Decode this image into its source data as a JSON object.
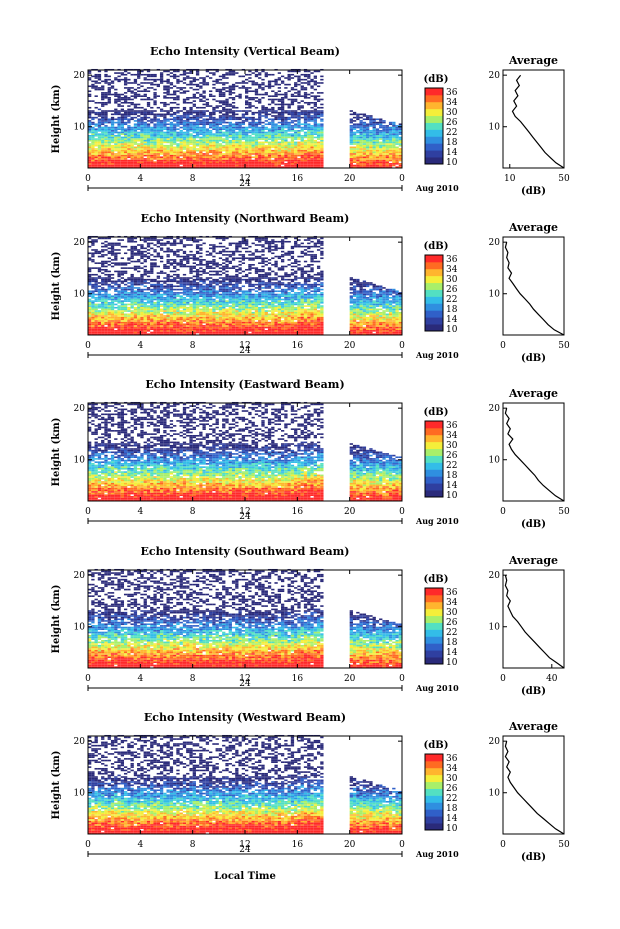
{
  "figure": {
    "xlabel": "Local Time",
    "colorscale": [
      "#2a2a7a",
      "#2f3fa0",
      "#3060c8",
      "#2f8fe0",
      "#33bde8",
      "#53e0c2",
      "#a8ef6a",
      "#f4ee3a",
      "#ffb52e",
      "#ff6b22",
      "#ff2a2a"
    ]
  },
  "chart_data": [
    {
      "type": "heatmap",
      "title": "Echo Intensity (Vertical Beam)",
      "ylabel": "Height (km)",
      "x_ticks": [
        "0",
        "4",
        "8",
        "12",
        "16",
        "20",
        "0"
      ],
      "xlim": [
        0,
        24
      ],
      "y_ticks": [
        "10",
        "20"
      ],
      "ylim": [
        2,
        21
      ],
      "date_day": "24",
      "date_month": "Aug 2010",
      "data_gap_hours": [
        18,
        20
      ],
      "colorbar": {
        "label": "(dB)",
        "ticks": [
          "36",
          "34",
          "30",
          "26",
          "22",
          "18",
          "14",
          "10"
        ]
      },
      "profile": {
        "title": "Average",
        "xlabel": "(dB)",
        "x_ticks": [
          "10",
          "50"
        ],
        "xlim": [
          5,
          50
        ],
        "y_ticks": [
          "10",
          "20"
        ],
        "height_km": [
          2,
          3,
          4,
          5,
          6,
          7,
          8,
          9,
          10,
          11,
          12,
          13,
          14,
          15,
          16,
          17,
          18,
          19,
          20
        ],
        "avg_db": [
          50,
          44,
          40,
          36,
          33,
          30,
          27,
          24,
          21,
          18,
          14,
          12,
          15,
          13,
          16,
          14,
          17,
          15,
          18
        ]
      }
    },
    {
      "type": "heatmap",
      "title": "Echo Intensity (Northward Beam)",
      "ylabel": "Height (km)",
      "x_ticks": [
        "0",
        "4",
        "8",
        "12",
        "16",
        "20",
        "0"
      ],
      "xlim": [
        0,
        24
      ],
      "y_ticks": [
        "10",
        "20"
      ],
      "ylim": [
        2,
        21
      ],
      "date_day": "24",
      "date_month": "Aug 2010",
      "data_gap_hours": [
        18,
        20
      ],
      "colorbar": {
        "label": "(dB)",
        "ticks": [
          "36",
          "34",
          "30",
          "26",
          "22",
          "18",
          "14",
          "10"
        ]
      },
      "profile": {
        "title": "Average",
        "xlabel": "(dB)",
        "x_ticks": [
          "0",
          "50"
        ],
        "xlim": [
          0,
          50
        ],
        "y_ticks": [
          "10",
          "20"
        ],
        "height_km": [
          2,
          3,
          4,
          5,
          6,
          7,
          8,
          9,
          10,
          11,
          12,
          13,
          14,
          15,
          16,
          17,
          18,
          19,
          20
        ],
        "avg_db": [
          50,
          42,
          37,
          33,
          29,
          25,
          22,
          18,
          14,
          11,
          8,
          5,
          7,
          4,
          5,
          3,
          4,
          2,
          3
        ]
      }
    },
    {
      "type": "heatmap",
      "title": "Echo Intensity (Eastward Beam)",
      "ylabel": "Height (km)",
      "x_ticks": [
        "0",
        "4",
        "8",
        "12",
        "16",
        "20",
        "0"
      ],
      "xlim": [
        0,
        24
      ],
      "y_ticks": [
        "10",
        "20"
      ],
      "ylim": [
        2,
        21
      ],
      "date_day": "24",
      "date_month": "Aug 2010",
      "data_gap_hours": [
        18,
        20
      ],
      "colorbar": {
        "label": "(dB)",
        "ticks": [
          "36",
          "34",
          "30",
          "26",
          "22",
          "18",
          "14",
          "10"
        ]
      },
      "profile": {
        "title": "Average",
        "xlabel": "(dB)",
        "x_ticks": [
          "0",
          "50"
        ],
        "xlim": [
          0,
          50
        ],
        "y_ticks": [
          "10",
          "20"
        ],
        "height_km": [
          2,
          3,
          4,
          5,
          6,
          7,
          8,
          9,
          10,
          11,
          12,
          13,
          14,
          15,
          16,
          17,
          18,
          19,
          20
        ],
        "avg_db": [
          50,
          43,
          38,
          33,
          29,
          26,
          22,
          18,
          14,
          10,
          7,
          5,
          8,
          4,
          6,
          3,
          5,
          2,
          3
        ]
      }
    },
    {
      "type": "heatmap",
      "title": "Echo Intensity (Southward Beam)",
      "ylabel": "Height (km)",
      "x_ticks": [
        "0",
        "4",
        "8",
        "12",
        "16",
        "20",
        "0"
      ],
      "xlim": [
        0,
        24
      ],
      "y_ticks": [
        "10",
        "20"
      ],
      "ylim": [
        2,
        21
      ],
      "date_day": "24",
      "date_month": "Aug 2010",
      "data_gap_hours": [
        18,
        20
      ],
      "colorbar": {
        "label": "(dB)",
        "ticks": [
          "36",
          "34",
          "30",
          "26",
          "22",
          "18",
          "14",
          "10"
        ]
      },
      "profile": {
        "title": "Average",
        "xlabel": "(dB)",
        "x_ticks": [
          "0",
          "40"
        ],
        "xlim": [
          0,
          50
        ],
        "y_ticks": [
          "10",
          "20"
        ],
        "height_km": [
          2,
          3,
          4,
          5,
          6,
          7,
          8,
          9,
          10,
          11,
          12,
          13,
          14,
          15,
          16,
          17,
          18,
          19,
          20
        ],
        "avg_db": [
          50,
          44,
          38,
          34,
          30,
          26,
          22,
          18,
          15,
          12,
          8,
          6,
          4,
          6,
          3,
          4,
          2,
          3,
          2
        ]
      }
    },
    {
      "type": "heatmap",
      "title": "Echo Intensity (Westward Beam)",
      "ylabel": "Height (km)",
      "x_ticks": [
        "0",
        "4",
        "8",
        "12",
        "16",
        "20",
        "0"
      ],
      "xlim": [
        0,
        24
      ],
      "y_ticks": [
        "10",
        "20"
      ],
      "ylim": [
        2,
        21
      ],
      "date_day": "24",
      "date_month": "Aug 2010",
      "data_gap_hours": [
        18,
        20
      ],
      "colorbar": {
        "label": "(dB)",
        "ticks": [
          "36",
          "34",
          "30",
          "26",
          "22",
          "18",
          "14",
          "10"
        ]
      },
      "profile": {
        "title": "Average",
        "xlabel": "(dB)",
        "x_ticks": [
          "0",
          "50"
        ],
        "xlim": [
          0,
          50
        ],
        "y_ticks": [
          "10",
          "20"
        ],
        "height_km": [
          2,
          3,
          4,
          5,
          6,
          7,
          8,
          9,
          10,
          11,
          12,
          13,
          14,
          15,
          16,
          17,
          18,
          19,
          20
        ],
        "avg_db": [
          50,
          43,
          38,
          33,
          28,
          24,
          20,
          16,
          12,
          9,
          6,
          4,
          6,
          3,
          5,
          2,
          4,
          2,
          3
        ]
      }
    }
  ]
}
